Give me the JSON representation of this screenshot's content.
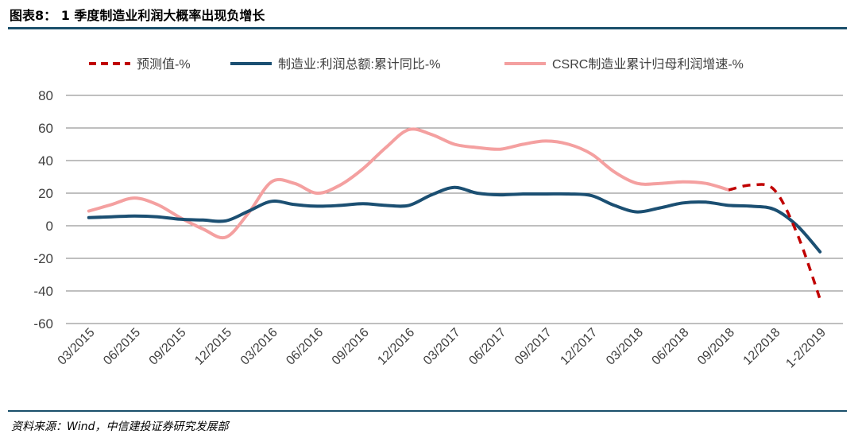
{
  "figure": {
    "title": "图表8： 1 季度制造业利润大概率出现负增长",
    "source": "资料来源：Wind，中信建投证券研究发展部"
  },
  "chart_data": {
    "type": "line",
    "categories": [
      "03/2015",
      "06/2015",
      "09/2015",
      "12/2015",
      "03/2016",
      "06/2016",
      "09/2016",
      "12/2016",
      "03/2017",
      "06/2017",
      "09/2017",
      "12/2017",
      "03/2018",
      "06/2018",
      "09/2018",
      "12/2018",
      "1-2/2019"
    ],
    "ylim": [
      -60,
      80
    ],
    "yticks": [
      -60,
      -40,
      -20,
      0,
      20,
      40,
      60,
      80
    ],
    "grid": true,
    "legend_position": "top",
    "series": [
      {
        "name": "预测值-%",
        "color": "#c00000",
        "style": "dashed",
        "x": [
          14,
          14.5,
          15,
          15.5,
          16
        ],
        "values": [
          22,
          25,
          22,
          -5,
          -45
        ]
      },
      {
        "name": "制造业:利润总额:累计同比-%",
        "color": "#1b4f72",
        "style": "solid",
        "x": [
          0,
          0.5,
          1,
          1.5,
          2,
          2.5,
          3,
          3.5,
          4,
          4.5,
          5,
          5.5,
          6,
          6.5,
          7,
          7.5,
          8,
          8.5,
          9,
          9.5,
          10,
          10.5,
          11,
          11.5,
          12,
          12.5,
          13,
          13.5,
          14,
          14.5,
          15,
          15.5,
          16
        ],
        "values": [
          5,
          5.5,
          6,
          5.5,
          4,
          3.5,
          3,
          9,
          15,
          13,
          12,
          12.5,
          13.5,
          12.5,
          12.5,
          19,
          23.5,
          20,
          19,
          19.5,
          19.5,
          19.5,
          18.5,
          12.5,
          8.5,
          11,
          14,
          14.5,
          12.5,
          12,
          10,
          0,
          -16
        ]
      },
      {
        "name": "CSRC制造业累计归母利润增速-%",
        "color": "#f4a0a0",
        "style": "solid",
        "x": [
          0,
          0.5,
          1,
          1.5,
          2,
          2.5,
          3,
          3.5,
          4,
          4.5,
          5,
          5.5,
          6,
          6.5,
          7,
          7.5,
          8,
          8.5,
          9,
          9.5,
          10,
          10.5,
          11,
          11.5,
          12,
          12.5,
          13,
          13.5,
          14
        ],
        "values": [
          9,
          13,
          17,
          13,
          5,
          -2,
          -7,
          8,
          27,
          26,
          20,
          25,
          35,
          48,
          59,
          56,
          50,
          48,
          47,
          50,
          52,
          50,
          44,
          33,
          26,
          26,
          27,
          26,
          22
        ]
      }
    ]
  }
}
